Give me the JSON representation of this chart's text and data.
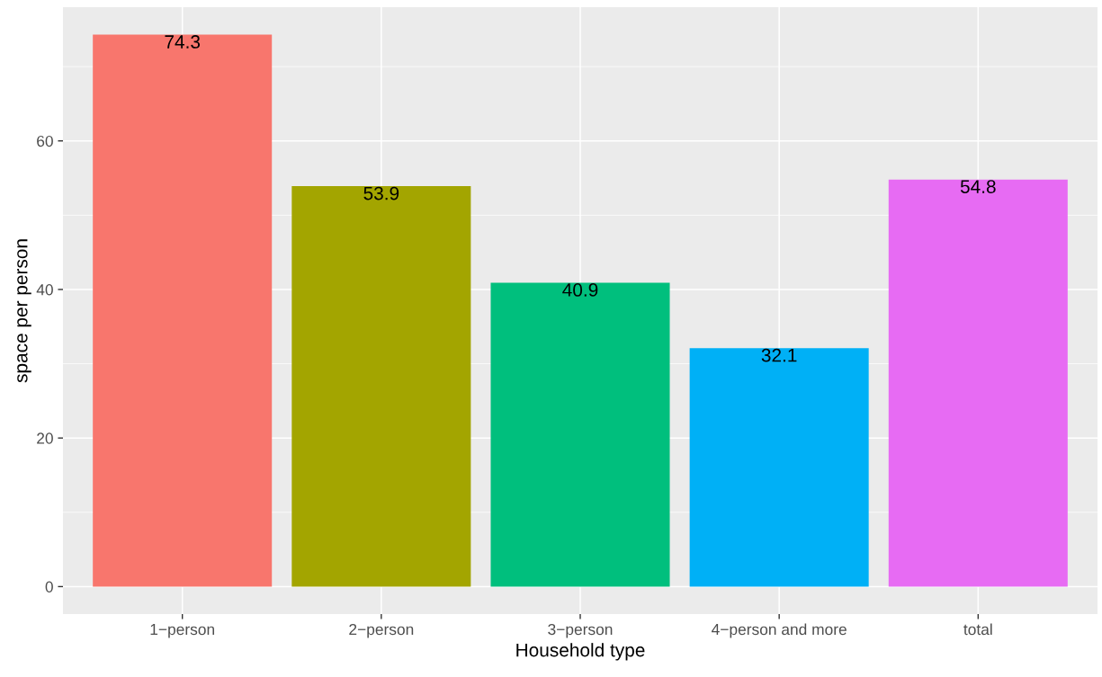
{
  "chart_data": {
    "type": "bar",
    "xlabel": "Household type",
    "ylabel": "space per person",
    "categories": [
      "1−person",
      "2−person",
      "3−person",
      "4−person and more",
      "total"
    ],
    "values": [
      74.3,
      53.9,
      40.9,
      32.1,
      54.8
    ],
    "colors": [
      "#f8766d",
      "#a3a500",
      "#00bf7d",
      "#00b0f6",
      "#e76bf3"
    ],
    "ylim": [
      -3.7,
      78.0
    ],
    "yticks": [
      0,
      20,
      40,
      60
    ],
    "grid": true,
    "data_labels": true
  }
}
